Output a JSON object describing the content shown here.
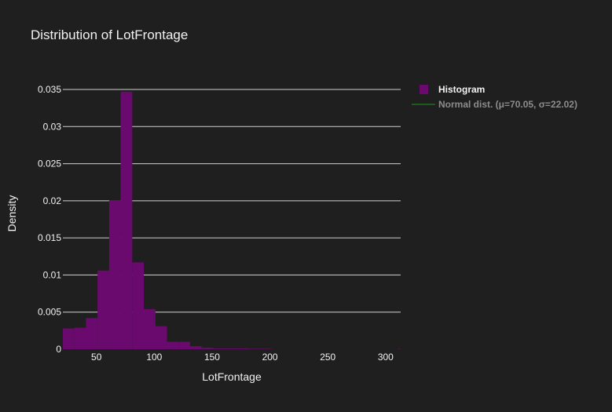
{
  "chart_data": {
    "type": "bar",
    "title": "Distribution of LotFrontage",
    "xlabel": "LotFrontage",
    "ylabel": "Density",
    "xlim": [
      21,
      313
    ],
    "ylim": [
      0,
      0.035
    ],
    "x_ticks": [
      50,
      100,
      150,
      200,
      250,
      300
    ],
    "y_ticks": [
      0,
      0.005,
      0.01,
      0.015,
      0.02,
      0.025,
      0.03,
      0.035
    ],
    "y_tick_labels": [
      "0",
      "0.005",
      "0.01",
      "0.015",
      "0.02",
      "0.025",
      "0.03",
      "0.035"
    ],
    "grid": true,
    "legend_position": "top-right",
    "bin_width": 10,
    "series": [
      {
        "name": "Histogram",
        "kind": "histogram",
        "color": "#6b0a6e",
        "bins": [
          {
            "x0": 21,
            "x1": 31,
            "value": 0.0028
          },
          {
            "x0": 31,
            "x1": 41,
            "value": 0.0029
          },
          {
            "x0": 41,
            "x1": 51,
            "value": 0.0042
          },
          {
            "x0": 51,
            "x1": 61,
            "value": 0.0106
          },
          {
            "x0": 61,
            "x1": 71,
            "value": 0.0201
          },
          {
            "x0": 71,
            "x1": 81,
            "value": 0.0347
          },
          {
            "x0": 81,
            "x1": 91,
            "value": 0.0117
          },
          {
            "x0": 91,
            "x1": 101,
            "value": 0.0054
          },
          {
            "x0": 101,
            "x1": 111,
            "value": 0.0031
          },
          {
            "x0": 111,
            "x1": 121,
            "value": 0.001
          },
          {
            "x0": 121,
            "x1": 131,
            "value": 0.001
          },
          {
            "x0": 131,
            "x1": 141,
            "value": 0.0004
          },
          {
            "x0": 141,
            "x1": 151,
            "value": 0.0002
          },
          {
            "x0": 151,
            "x1": 161,
            "value": 0.0001
          },
          {
            "x0": 161,
            "x1": 171,
            "value": 0.0001
          },
          {
            "x0": 171,
            "x1": 181,
            "value": 0.0001
          },
          {
            "x0": 181,
            "x1": 191,
            "value": 5e-05
          },
          {
            "x0": 191,
            "x1": 201,
            "value": 5e-05
          },
          {
            "x0": 311,
            "x1": 313,
            "value": 5e-05
          }
        ]
      },
      {
        "name": "Normal dist. (μ=70.05, σ=22.02)",
        "kind": "line",
        "color": "#1e5a1e",
        "legend_hidden": true,
        "mu": 70.05,
        "sigma": 22.02
      }
    ]
  },
  "colors": {
    "background": "#1f1f1f",
    "grid": "#d0d0d0",
    "text": "#f2f2f2",
    "legend_muted": "#8c8c8c"
  }
}
